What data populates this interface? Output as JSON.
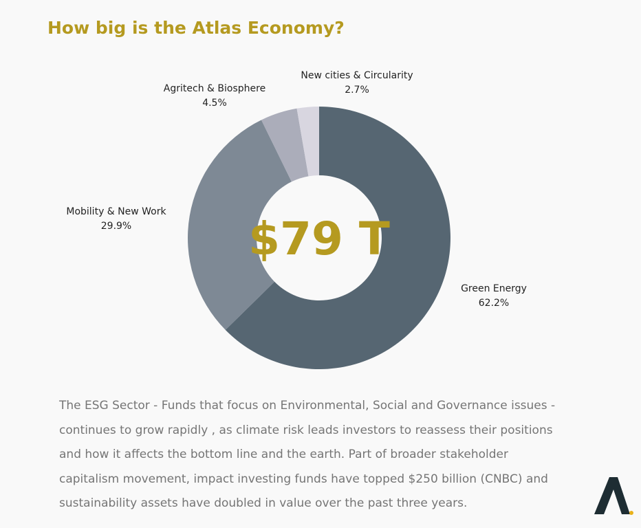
{
  "title": "How big is the Atlas Economy?",
  "center_label": "$79 T",
  "chart_data": {
    "type": "pie",
    "donut": true,
    "start_angle_deg": 0,
    "direction": "clockwise",
    "slices": [
      {
        "label": "Green Energy",
        "value": 62.2,
        "value_label": "62.2%",
        "color": "#566672"
      },
      {
        "label": "Mobility & New Work",
        "value": 29.9,
        "value_label": "29.9%",
        "color": "#7e8995"
      },
      {
        "label": "Agritech & Biosphere",
        "value": 4.5,
        "value_label": "4.5%",
        "color": "#abadba"
      },
      {
        "label": "New cities & Circularity",
        "value": 2.7,
        "value_label": "2.7%",
        "color": "#d8d6e0"
      }
    ]
  },
  "description": "The ESG Sector - Funds that focus on Environmental, Social and Governance issues - continues to  grow rapidly , as climate risk leads investors to reassess their positions and how it affects the bottom line and the earth. Part of broader stakeholder capitalism movement, impact investing funds have topped $250 billion (CNBC) and sustainability assets have doubled in value over the past three years.",
  "logo": {
    "icon": "atlas-logo-icon",
    "color": "#1e2d33",
    "dot_color": "#e8b11a"
  }
}
